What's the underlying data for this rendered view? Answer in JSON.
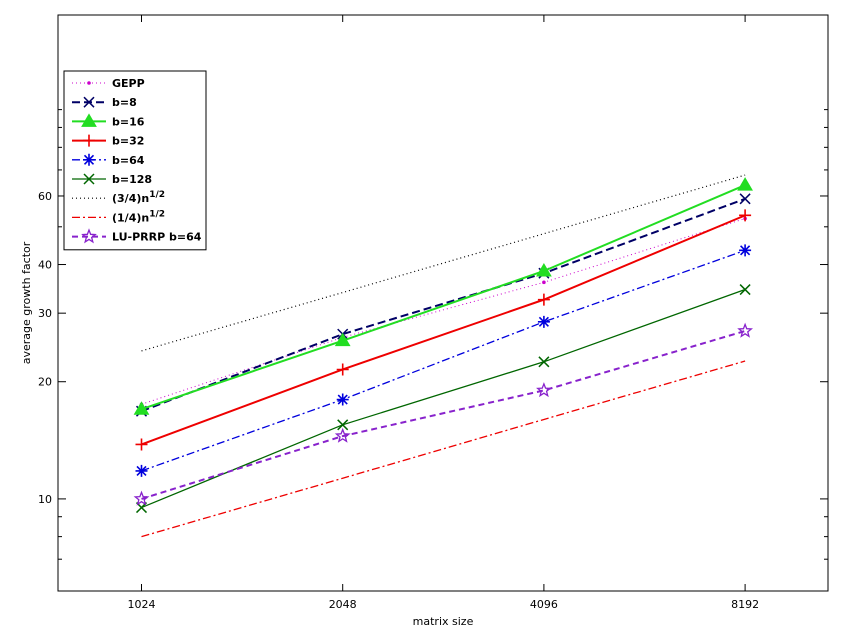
{
  "chart_data": {
    "type": "line",
    "xlabel": "matrix size",
    "ylabel": "average growth factor",
    "x_scale": "log2",
    "y_scale": "log10",
    "categories": [
      "1024",
      "2048",
      "4096",
      "8192"
    ],
    "x": [
      1024,
      2048,
      4096,
      8192
    ],
    "xlim": [
      768,
      10900
    ],
    "ylim": [
      5.8,
      175
    ],
    "yticks": [
      {
        "value": 10,
        "label": "10"
      },
      {
        "value": 20,
        "label": "20"
      },
      {
        "value": 30,
        "label": "30"
      },
      {
        "value": 40,
        "label": "40"
      },
      {
        "value": 60,
        "label": "60"
      }
    ],
    "yminor": [
      7,
      8,
      9,
      50,
      70,
      80,
      90,
      100
    ],
    "grid": false,
    "legend_position": "top-left",
    "series": [
      {
        "name": "GEPP",
        "values": [
          17.5,
          26.0,
          36.0,
          52.5
        ],
        "color": "#cc00cc",
        "dash": "1,3",
        "marker": "dot",
        "width": 1
      },
      {
        "name": "b=8",
        "values": [
          16.8,
          26.5,
          38.0,
          59.0
        ],
        "color": "#000066",
        "dash": "8,4",
        "marker": "x",
        "width": 2
      },
      {
        "name": "b=16",
        "values": [
          17.0,
          25.5,
          38.5,
          64.0
        ],
        "color": "#22dd22",
        "dash": "",
        "marker": "triangle",
        "width": 2
      },
      {
        "name": "b=32",
        "values": [
          13.8,
          21.5,
          32.5,
          53.5
        ],
        "color": "#ee0000",
        "dash": "",
        "marker": "plus",
        "width": 2
      },
      {
        "name": "b=64",
        "values": [
          11.8,
          18.0,
          28.5,
          43.5
        ],
        "color": "#0000dd",
        "dash": "8,3,2,3",
        "marker": "asterisk",
        "width": 1.3
      },
      {
        "name": "b=128",
        "values": [
          9.5,
          15.5,
          22.5,
          34.5
        ],
        "color": "#006600",
        "dash": "",
        "marker": "x",
        "width": 1.3
      },
      {
        "name": "(3/4)n^1/2",
        "values": [
          24.0,
          33.9,
          48.0,
          67.9
        ],
        "color": "#000000",
        "dash": "1,3",
        "marker": "none",
        "width": 1.2
      },
      {
        "name": "(1/4)n^1/2",
        "values": [
          8.0,
          11.3,
          16.0,
          22.6
        ],
        "color": "#ee0000",
        "dash": "8,3,2,3",
        "marker": "none",
        "width": 1.3
      },
      {
        "name": "LU-PRRP b=64",
        "values": [
          10.0,
          14.5,
          19.0,
          27.0
        ],
        "color": "#8822cc",
        "dash": "6,4",
        "marker": "star",
        "width": 2
      }
    ]
  }
}
